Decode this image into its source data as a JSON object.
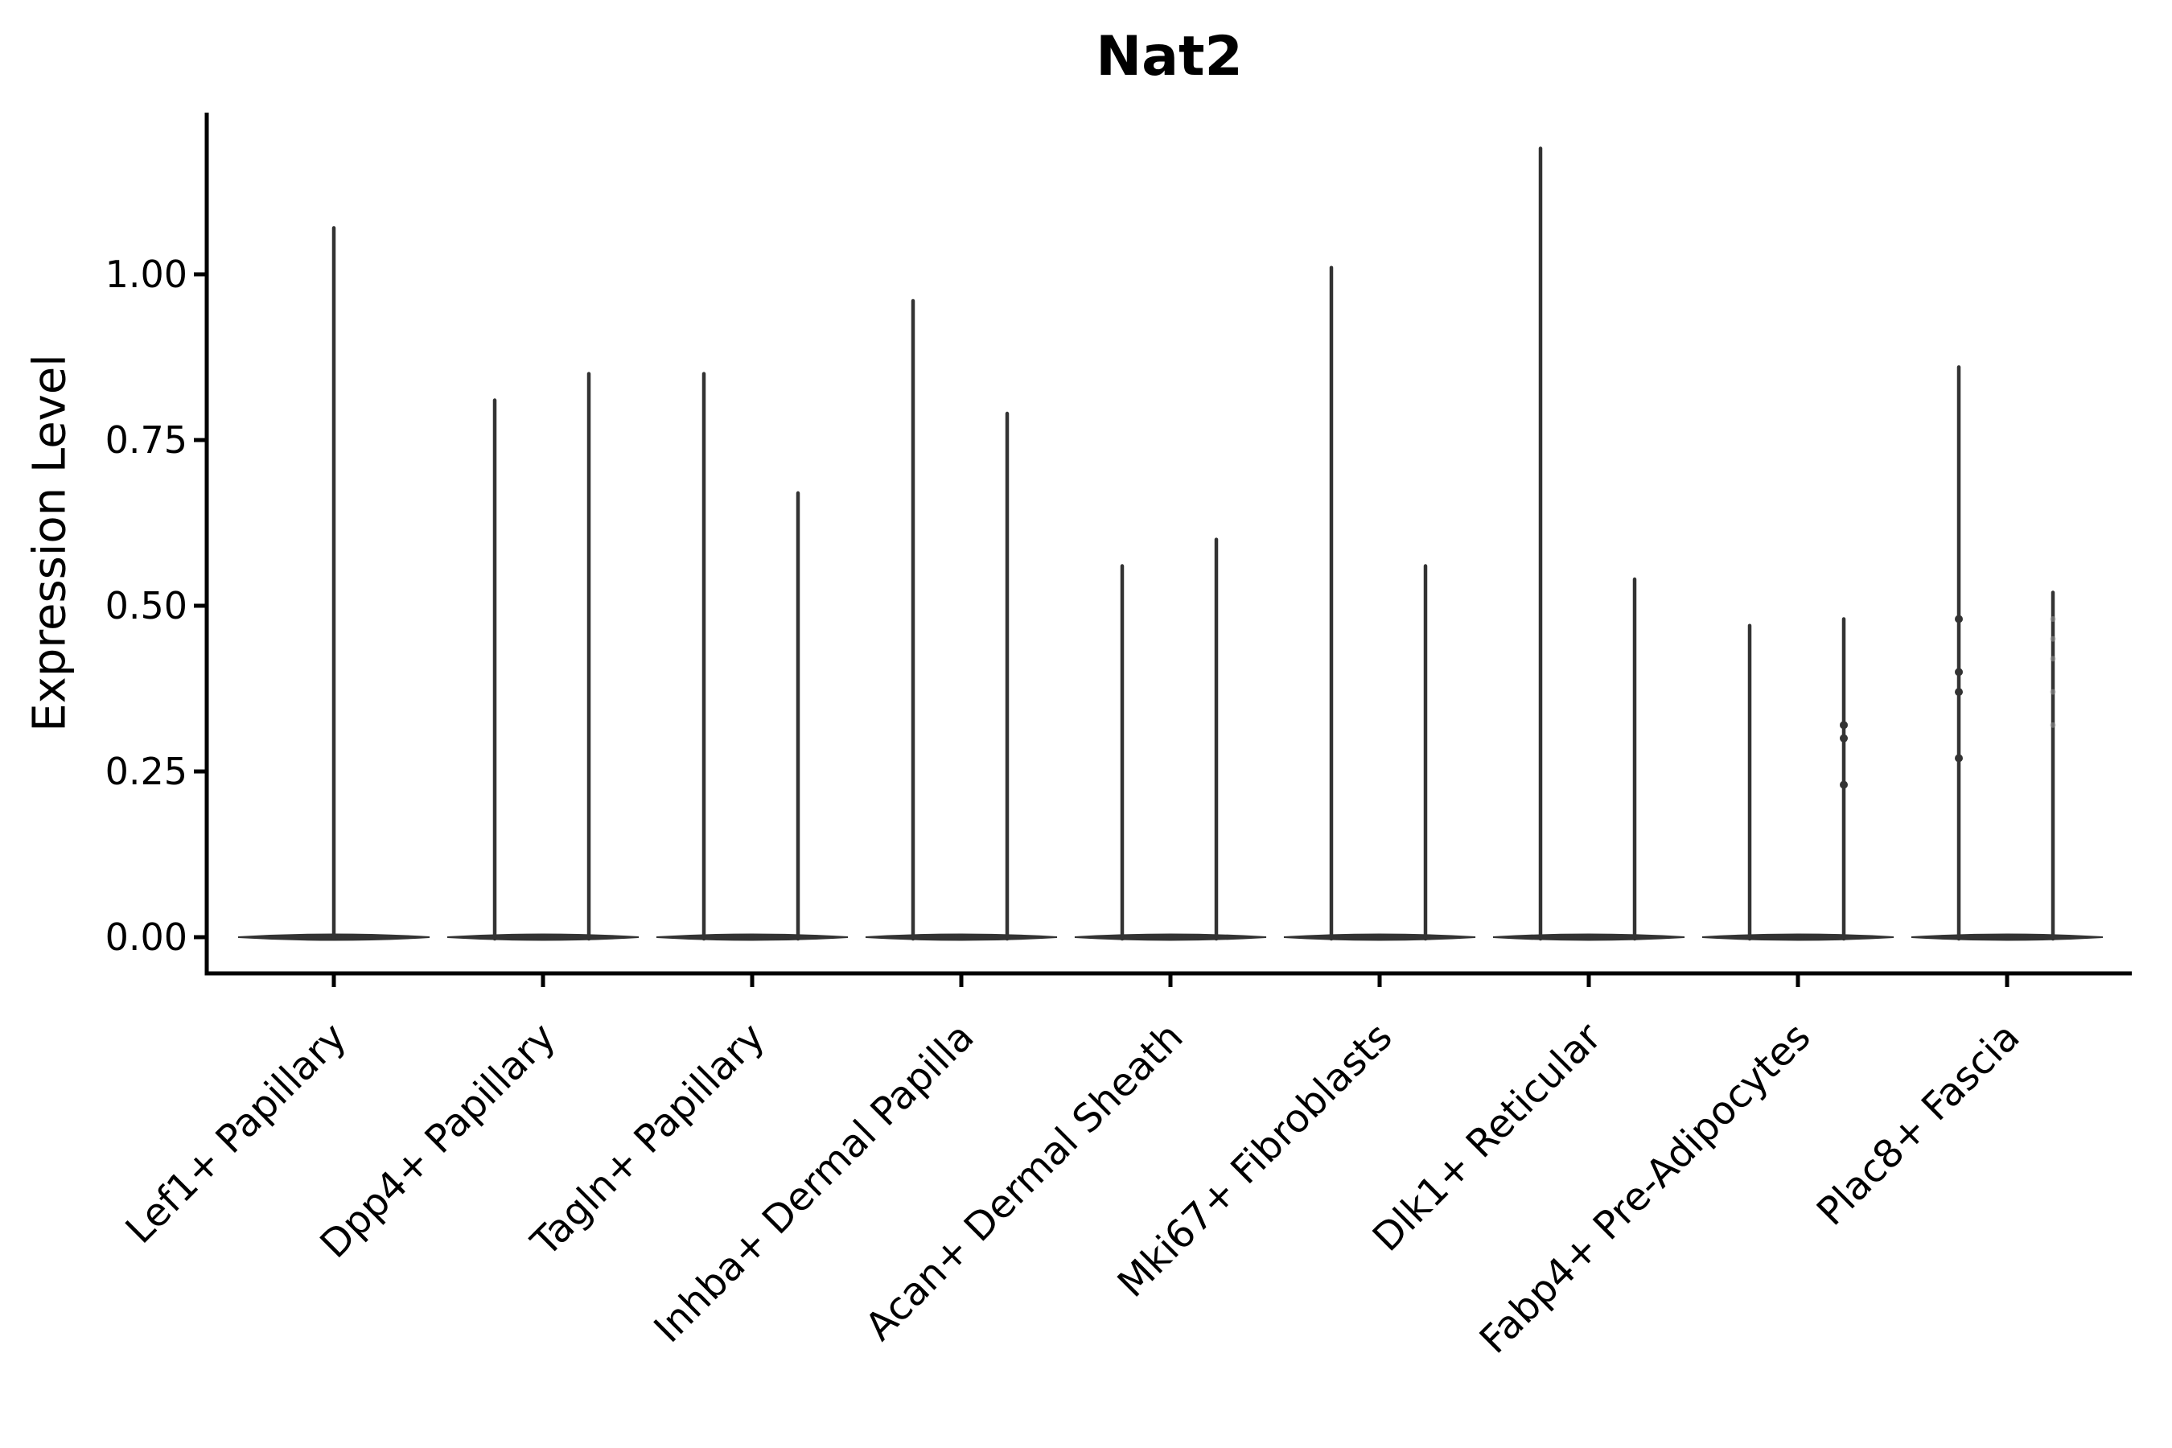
{
  "chart_data": {
    "type": "violin",
    "title": "Nat2",
    "ylabel": "Expression Level",
    "xlabel": "",
    "ylim": [
      -0.05,
      1.25
    ],
    "yticks": [
      0.0,
      0.25,
      0.5,
      0.75,
      1.0
    ],
    "ytick_labels": [
      "0.00",
      "0.25",
      "0.50",
      "0.75",
      "1.00"
    ],
    "grid": false,
    "legend": false,
    "x_label_rotation_deg": 45,
    "colors": {
      "violin": "#333333",
      "axis": "#000000",
      "text": "#000000",
      "faint_point": "#999999"
    },
    "description": "Violin plot of Nat2 expression; each cell-type category shows violins collapsed to a flat mass at 0 with a thin spike up to the maximum expressing cells.",
    "categories": [
      "Lef1+ Papillary",
      "Dpp4+ Papillary",
      "Tagln+ Papillary",
      "Inhba+ Dermal Papilla",
      "Acan+ Dermal Sheath",
      "Mki67+ Fibroblasts",
      "Dlk1+ Reticular",
      "Fabp4+ Pre-Adipocytes",
      "Plac8+ Fascia"
    ],
    "groups": [
      {
        "category": "Lef1+ Papillary",
        "violins": [
          {
            "peak": 1.07,
            "points": [],
            "faint_points": []
          }
        ]
      },
      {
        "category": "Dpp4+ Papillary",
        "violins": [
          {
            "peak": 0.81,
            "points": [],
            "faint_points": []
          },
          {
            "peak": 0.85,
            "points": [],
            "faint_points": []
          }
        ]
      },
      {
        "category": "Tagln+ Papillary",
        "violins": [
          {
            "peak": 0.85,
            "points": [],
            "faint_points": []
          },
          {
            "peak": 0.67,
            "points": [],
            "faint_points": []
          }
        ]
      },
      {
        "category": "Inhba+ Dermal Papilla",
        "violins": [
          {
            "peak": 0.96,
            "points": [],
            "faint_points": []
          },
          {
            "peak": 0.79,
            "points": [],
            "faint_points": []
          }
        ]
      },
      {
        "category": "Acan+ Dermal Sheath",
        "violins": [
          {
            "peak": 0.56,
            "points": [],
            "faint_points": []
          },
          {
            "peak": 0.6,
            "points": [],
            "faint_points": []
          }
        ]
      },
      {
        "category": "Mki67+ Fibroblasts",
        "violins": [
          {
            "peak": 1.01,
            "points": [],
            "faint_points": []
          },
          {
            "peak": 0.56,
            "points": [],
            "faint_points": []
          }
        ]
      },
      {
        "category": "Dlk1+ Reticular",
        "violins": [
          {
            "peak": 1.19,
            "points": [],
            "faint_points": []
          },
          {
            "peak": 0.54,
            "points": [],
            "faint_points": []
          }
        ]
      },
      {
        "category": "Fabp4+ Pre-Adipocytes",
        "violins": [
          {
            "peak": 0.47,
            "points": [],
            "faint_points": []
          },
          {
            "peak": 0.48,
            "points": [
              0.32,
              0.3,
              0.23
            ],
            "faint_points": []
          }
        ]
      },
      {
        "category": "Plac8+ Fascia",
        "violins": [
          {
            "peak": 0.86,
            "points": [
              0.48,
              0.4,
              0.37,
              0.27
            ],
            "faint_points": []
          },
          {
            "peak": 0.52,
            "points": [],
            "faint_points": [
              0.48,
              0.45,
              0.42,
              0.37,
              0.32
            ]
          }
        ]
      }
    ]
  }
}
